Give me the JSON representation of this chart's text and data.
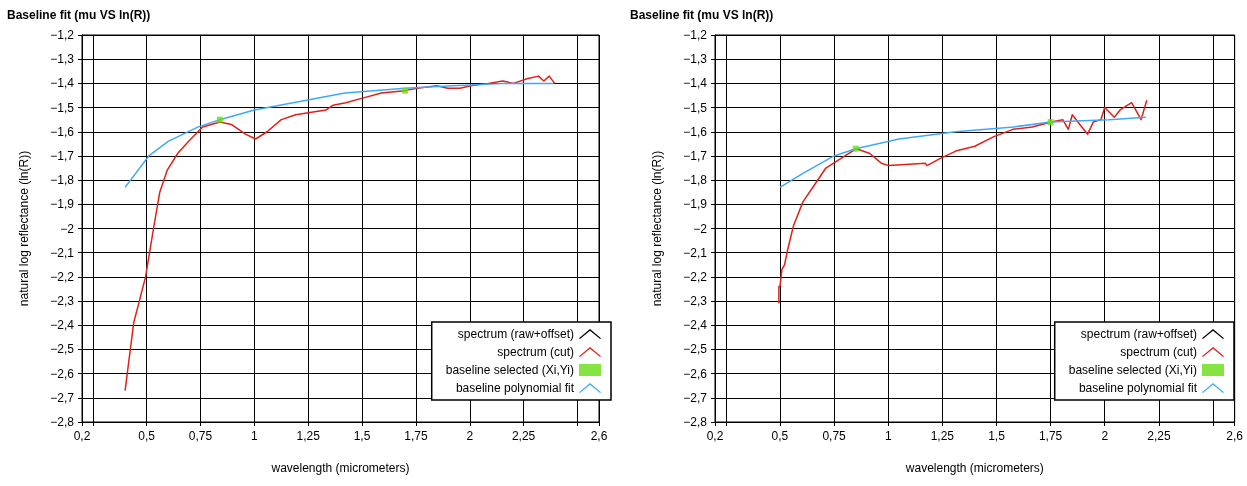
{
  "chart_data": [
    {
      "type": "line",
      "title": "Baseline fit (mu VS ln(R))",
      "xlabel": "wavelength (micrometers)",
      "ylabel": "natural log reflectance (ln(R))",
      "grid": true,
      "legend": "bottom right",
      "xlim": [
        0.2,
        2.6
      ],
      "ylim": [
        -2.8,
        -1.2
      ],
      "xticks": [
        {
          "value": 0.2,
          "label": "0,2"
        },
        {
          "value": 0.25,
          "label": null
        },
        {
          "value": 0.5,
          "label": "0,5"
        },
        {
          "value": 0.75,
          "label": "0,75"
        },
        {
          "value": 1,
          "label": "1"
        },
        {
          "value": 1.25,
          "label": "1,25"
        },
        {
          "value": 1.5,
          "label": "1,5"
        },
        {
          "value": 1.75,
          "label": "1,75"
        },
        {
          "value": 2,
          "label": "2"
        },
        {
          "value": 2.25,
          "label": "2,25"
        },
        {
          "value": 2.5,
          "label": null
        },
        {
          "value": 2.6,
          "label": "2,6"
        }
      ],
      "yticks": [
        {
          "value": -2.8,
          "label": "−2,8"
        },
        {
          "value": -2.7,
          "label": "−2,7"
        },
        {
          "value": -2.6,
          "label": "−2,6"
        },
        {
          "value": -2.5,
          "label": "−2,5"
        },
        {
          "value": -2.4,
          "label": "−2,4"
        },
        {
          "value": -2.3,
          "label": "−2,3"
        },
        {
          "value": -2.2,
          "label": "−2,2"
        },
        {
          "value": -2.1,
          "label": "−2,1"
        },
        {
          "value": -2,
          "label": "−2"
        },
        {
          "value": -1.9,
          "label": "−1,9"
        },
        {
          "value": -1.8,
          "label": "−1,8"
        },
        {
          "value": -1.7,
          "label": "−1,7"
        },
        {
          "value": -1.6,
          "label": "−1,6"
        },
        {
          "value": -1.5,
          "label": "−1,5"
        },
        {
          "value": -1.4,
          "label": "−1,4"
        },
        {
          "value": -1.3,
          "label": "−1,3"
        },
        {
          "value": -1.2,
          "label": "−1,2"
        }
      ],
      "series": [
        {
          "name": "spectrum (raw+offset)",
          "color": "#000000"
        },
        {
          "name": "spectrum (cut)",
          "color": "#e0201b",
          "x": [
            0.4,
            0.44,
            0.495,
            0.532,
            0.561,
            0.595,
            0.644,
            0.694,
            0.76,
            0.84,
            0.893,
            0.959,
            1.006,
            1.059,
            1.125,
            1.192,
            1.258,
            1.333,
            1.366,
            1.424,
            1.507,
            1.59,
            1.697,
            1.756,
            1.847,
            1.897,
            1.955,
            2.004,
            2.087,
            2.153,
            2.203,
            2.27,
            2.319,
            2.344,
            2.369,
            2.394
          ],
          "values": [
            -2.67,
            -2.39,
            -2.2,
            -2.0,
            -1.85,
            -1.76,
            -1.69,
            -1.64,
            -1.58,
            -1.56,
            -1.57,
            -1.61,
            -1.63,
            -1.6,
            -1.55,
            -1.53,
            -1.52,
            -1.51,
            -1.49,
            -1.48,
            -1.46,
            -1.44,
            -1.43,
            -1.42,
            -1.41,
            -1.42,
            -1.42,
            -1.41,
            -1.4,
            -1.39,
            -1.4,
            -1.38,
            -1.37,
            -1.39,
            -1.37,
            -1.4
          ]
        },
        {
          "name": "baseline selected (Xi,Yi)",
          "type": "scatter",
          "marker": "square",
          "color": "#66dd11",
          "x": [
            0.84,
            1.7
          ],
          "values": [
            -1.55,
            -1.43
          ]
        },
        {
          "name": "baseline polynomial fit",
          "color": "#3fa9f5",
          "x": [
            0.4,
            0.51,
            0.6,
            0.74,
            0.84,
            1.0,
            1.18,
            1.42,
            1.7,
            1.92,
            2.17,
            2.39
          ],
          "values": [
            -1.83,
            -1.7,
            -1.64,
            -1.58,
            -1.55,
            -1.51,
            -1.48,
            -1.44,
            -1.42,
            -1.41,
            -1.4,
            -1.4
          ]
        }
      ]
    },
    {
      "type": "line",
      "title": "Baseline fit (mu VS ln(R))",
      "xlabel": "wavelength (micrometers)",
      "ylabel": "natural log reflectance (ln(R))",
      "grid": true,
      "legend": "bottom right",
      "xlim": [
        0.2,
        2.6
      ],
      "ylim": [
        -2.8,
        -1.2
      ],
      "xticks": [
        {
          "value": 0.2,
          "label": "0,2"
        },
        {
          "value": 0.25,
          "label": null
        },
        {
          "value": 0.5,
          "label": "0,5"
        },
        {
          "value": 0.75,
          "label": "0,75"
        },
        {
          "value": 1,
          "label": "1"
        },
        {
          "value": 1.25,
          "label": "1,25"
        },
        {
          "value": 1.5,
          "label": "1,5"
        },
        {
          "value": 1.75,
          "label": "1,75"
        },
        {
          "value": 2,
          "label": "2"
        },
        {
          "value": 2.25,
          "label": "2,25"
        },
        {
          "value": 2.5,
          "label": null
        },
        {
          "value": 2.6,
          "label": "2,6"
        }
      ],
      "yticks": [
        {
          "value": -2.8,
          "label": "−2,8"
        },
        {
          "value": -2.7,
          "label": "−2,7"
        },
        {
          "value": -2.6,
          "label": "−2,6"
        },
        {
          "value": -2.5,
          "label": "−2,5"
        },
        {
          "value": -2.4,
          "label": "−2,4"
        },
        {
          "value": -2.3,
          "label": "−2,3"
        },
        {
          "value": -2.2,
          "label": "−2,2"
        },
        {
          "value": -2.1,
          "label": "−2,1"
        },
        {
          "value": -2,
          "label": "−2"
        },
        {
          "value": -1.9,
          "label": "−1,9"
        },
        {
          "value": -1.8,
          "label": "−1,8"
        },
        {
          "value": -1.7,
          "label": "−1,7"
        },
        {
          "value": -1.6,
          "label": "−1,6"
        },
        {
          "value": -1.5,
          "label": "−1,5"
        },
        {
          "value": -1.4,
          "label": "−1,4"
        },
        {
          "value": -1.3,
          "label": "−1,3"
        },
        {
          "value": -1.2,
          "label": "−1,2"
        }
      ],
      "series": [
        {
          "name": "spectrum (raw+offset)",
          "color": "#000000"
        },
        {
          "name": "spectrum (cut)",
          "color": "#e0201b",
          "x": [
            0.495,
            0.495,
            0.5,
            0.509,
            0.521,
            0.535,
            0.562,
            0.606,
            0.659,
            0.712,
            0.782,
            0.853,
            0.915,
            0.968,
            1.003,
            1.171,
            1.179,
            1.241,
            1.312,
            1.4,
            1.488,
            1.576,
            1.665,
            1.753,
            1.806,
            1.832,
            1.85,
            1.894,
            1.921,
            1.947,
            1.982,
            2.0,
            2.044,
            2.071,
            2.124,
            2.168,
            2.194
          ],
          "values": [
            -2.31,
            -2.24,
            -2.24,
            -2.17,
            -2.15,
            -2.09,
            -1.99,
            -1.89,
            -1.82,
            -1.75,
            -1.71,
            -1.67,
            -1.69,
            -1.73,
            -1.74,
            -1.73,
            -1.74,
            -1.71,
            -1.68,
            -1.66,
            -1.62,
            -1.59,
            -1.58,
            -1.56,
            -1.55,
            -1.59,
            -1.53,
            -1.58,
            -1.61,
            -1.56,
            -1.55,
            -1.5,
            -1.54,
            -1.51,
            -1.48,
            -1.55,
            -1.47
          ]
        },
        {
          "name": "baseline selected (Xi,Yi)",
          "type": "scatter",
          "marker": "square",
          "color": "#66dd11",
          "x": [
            0.85,
            1.75
          ],
          "values": [
            -1.67,
            -1.56
          ]
        },
        {
          "name": "baseline polynomial fit",
          "color": "#3fa9f5",
          "x": [
            0.5,
            0.61,
            0.75,
            0.85,
            1.05,
            1.31,
            1.58,
            1.75,
            2.02,
            2.19
          ],
          "values": [
            -1.83,
            -1.77,
            -1.7,
            -1.67,
            -1.63,
            -1.6,
            -1.58,
            -1.56,
            -1.55,
            -1.54
          ]
        }
      ]
    }
  ]
}
